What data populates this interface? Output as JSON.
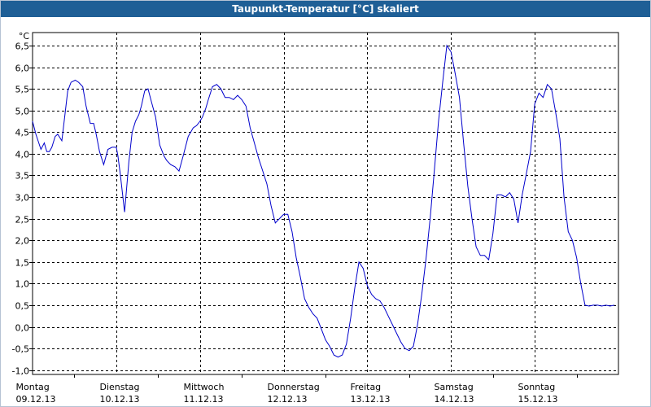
{
  "window": {
    "title": "Taupunkt-Temperatur [°C] skaliert"
  },
  "chart_data": {
    "type": "line",
    "title": "Taupunkt-Temperatur [°C] skaliert",
    "ylabel": "°C",
    "xlabel": "",
    "ylim": [
      -1.1,
      6.8
    ],
    "xlim": [
      0,
      7.0
    ],
    "yticks": [
      -1.0,
      -0.5,
      0.0,
      0.5,
      1.0,
      1.5,
      2.0,
      2.5,
      3.0,
      3.5,
      4.0,
      4.5,
      5.0,
      5.5,
      6.0,
      6.5
    ],
    "ytick_labels": [
      "-1,0",
      "-0,5",
      "0,0",
      "0,5",
      "1,0",
      "1,5",
      "2,0",
      "2,5",
      "3,0",
      "3,5",
      "4,0",
      "4,5",
      "5,0",
      "5,5",
      "6,0",
      "6,5"
    ],
    "days": [
      {
        "name": "Montag",
        "date": "09.12.13"
      },
      {
        "name": "Dienstag",
        "date": "10.12.13"
      },
      {
        "name": "Mittwoch",
        "date": "11.12.13"
      },
      {
        "name": "Donnerstag",
        "date": "12.12.13"
      },
      {
        "name": "Freitag",
        "date": "13.12.13"
      },
      {
        "name": "Samstag",
        "date": "14.12.13"
      },
      {
        "name": "Sonntag",
        "date": "15.12.13"
      }
    ],
    "grid": true,
    "line_color": "#0000cc",
    "series": [
      {
        "x": [
          0.0,
          0.04,
          0.1,
          0.14,
          0.17,
          0.2,
          0.23,
          0.27,
          0.3,
          0.35,
          0.39,
          0.42,
          0.46,
          0.51,
          0.55,
          0.6,
          0.64,
          0.69,
          0.73,
          0.76,
          0.8,
          0.85,
          0.9,
          0.95,
          1.0,
          1.02,
          1.05,
          1.1,
          1.15,
          1.19,
          1.23,
          1.27,
          1.3,
          1.34,
          1.38,
          1.42,
          1.47,
          1.52,
          1.57,
          1.6,
          1.65,
          1.7,
          1.75,
          1.8,
          1.86,
          1.92,
          1.96,
          2.0,
          2.03,
          2.07,
          2.1,
          2.15,
          2.2,
          2.25,
          2.3,
          2.35,
          2.4,
          2.45,
          2.5,
          2.55,
          2.6,
          2.65,
          2.7,
          2.75,
          2.8,
          2.85,
          2.9,
          2.95,
          3.0,
          3.05,
          3.1,
          3.15,
          3.2,
          3.25,
          3.3,
          3.35,
          3.4,
          3.45,
          3.5,
          3.55,
          3.6,
          3.65,
          3.7,
          3.75,
          3.8,
          3.85,
          3.9,
          3.95,
          4.0,
          4.05,
          4.1,
          4.15,
          4.2,
          4.25,
          4.3,
          4.35,
          4.4,
          4.45,
          4.5,
          4.55,
          4.6,
          4.65,
          4.7,
          4.75,
          4.8,
          4.85,
          4.9,
          4.95,
          5.0,
          5.05,
          5.1,
          5.15,
          5.2,
          5.25,
          5.3,
          5.35,
          5.4,
          5.45,
          5.5,
          5.55,
          5.6,
          5.65,
          5.7,
          5.75,
          5.8,
          5.85,
          5.9,
          5.95,
          6.0,
          6.05,
          6.1,
          6.15,
          6.2,
          6.25,
          6.3,
          6.35,
          6.4,
          6.45,
          6.5,
          6.55,
          6.6,
          6.65,
          6.7,
          6.75,
          6.8,
          6.85,
          6.9,
          6.95
        ],
        "y": [
          4.75,
          4.45,
          4.1,
          4.25,
          4.05,
          4.05,
          4.15,
          4.4,
          4.45,
          4.3,
          4.95,
          5.45,
          5.65,
          5.7,
          5.65,
          5.55,
          5.1,
          4.7,
          4.7,
          4.45,
          4.05,
          3.75,
          4.1,
          4.15,
          4.15,
          3.95,
          3.5,
          2.65,
          3.8,
          4.5,
          4.75,
          4.9,
          5.1,
          5.45,
          5.5,
          5.2,
          4.85,
          4.2,
          3.95,
          3.85,
          3.75,
          3.7,
          3.6,
          3.95,
          4.4,
          4.6,
          4.65,
          4.75,
          4.85,
          5.05,
          5.25,
          5.55,
          5.6,
          5.5,
          5.3,
          5.3,
          5.25,
          5.35,
          5.25,
          5.1,
          4.6,
          4.25,
          3.9,
          3.6,
          3.3,
          2.8,
          2.4,
          2.5,
          2.6,
          2.6,
          2.2,
          1.6,
          1.15,
          0.65,
          0.45,
          0.3,
          0.2,
          -0.05,
          -0.3,
          -0.45,
          -0.65,
          -0.7,
          -0.65,
          -0.4,
          0.2,
          0.9,
          1.5,
          1.35,
          0.95,
          0.75,
          0.65,
          0.6,
          0.45,
          0.25,
          0.05,
          -0.15,
          -0.35,
          -0.5,
          -0.55,
          -0.45,
          0.05,
          0.75,
          1.55,
          2.5,
          3.6,
          4.75,
          5.65,
          6.5,
          6.35,
          5.85,
          5.3,
          4.25,
          3.25,
          2.5,
          1.85,
          1.65,
          1.65,
          1.55,
          2.15,
          3.05,
          3.05,
          3.0,
          3.1,
          2.95,
          2.4,
          3.05,
          3.55,
          4.05,
          5.15,
          5.4,
          5.3,
          5.6,
          5.5,
          4.95,
          4.35,
          3.0,
          2.2,
          2.0,
          1.6,
          1.0,
          0.5,
          0.48,
          0.5,
          0.5,
          0.48,
          0.5,
          0.48,
          0.5
        ]
      }
    ]
  }
}
